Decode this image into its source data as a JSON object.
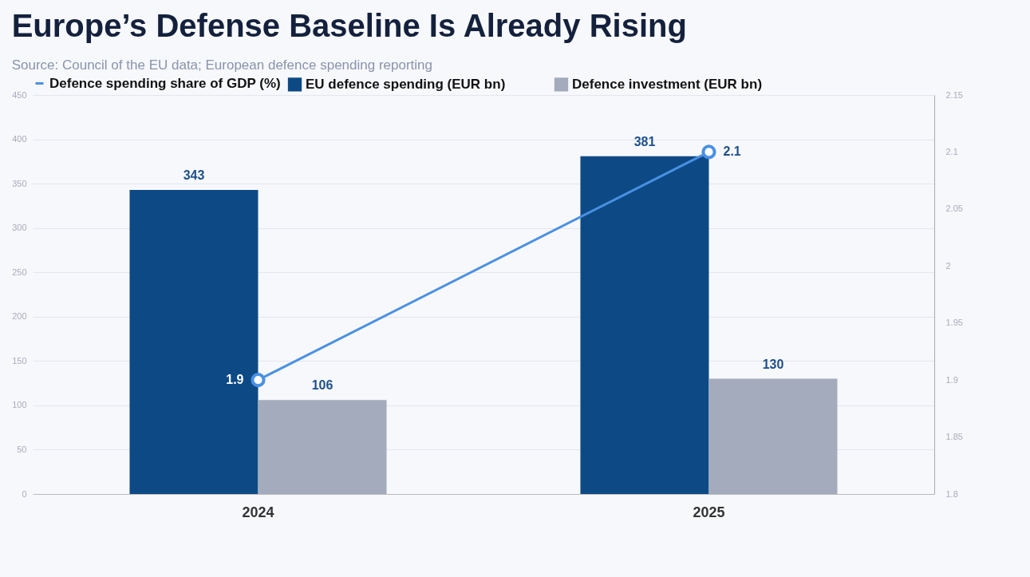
{
  "chart_data": {
    "type": "bar",
    "title": "Europe’s Defense Baseline Is Already Rising",
    "annotations": [
      "Source: Council of the EU data; European defence spending reporting"
    ],
    "categories": [
      "2024",
      "2025"
    ],
    "series": [
      {
        "name": "EU defence spending (EUR bn)",
        "color": "#0d4a85",
        "values": [
          343,
          381
        ]
      },
      {
        "name": "Defence investment (EUR bn)",
        "color": "#a3abbd",
        "values": [
          106,
          130
        ]
      },
      {
        "name": "Defence spending share of GDP (%)",
        "color": "#4a90e2",
        "values": [
          1.9,
          2.1
        ],
        "type": "line",
        "axis": "y2",
        "marker": "circle"
      }
    ],
    "ylim": [
      0,
      450
    ],
    "yticks": [
      0,
      50,
      100,
      150,
      200,
      250,
      300,
      350,
      400,
      450
    ],
    "y2lim": [
      1.8,
      2.15
    ],
    "y2ticks": [
      1.8,
      1.85,
      1.9,
      1.95,
      2,
      2.05,
      2.1,
      2.15
    ],
    "data_labels": true,
    "grid": "y",
    "legend": "top"
  }
}
